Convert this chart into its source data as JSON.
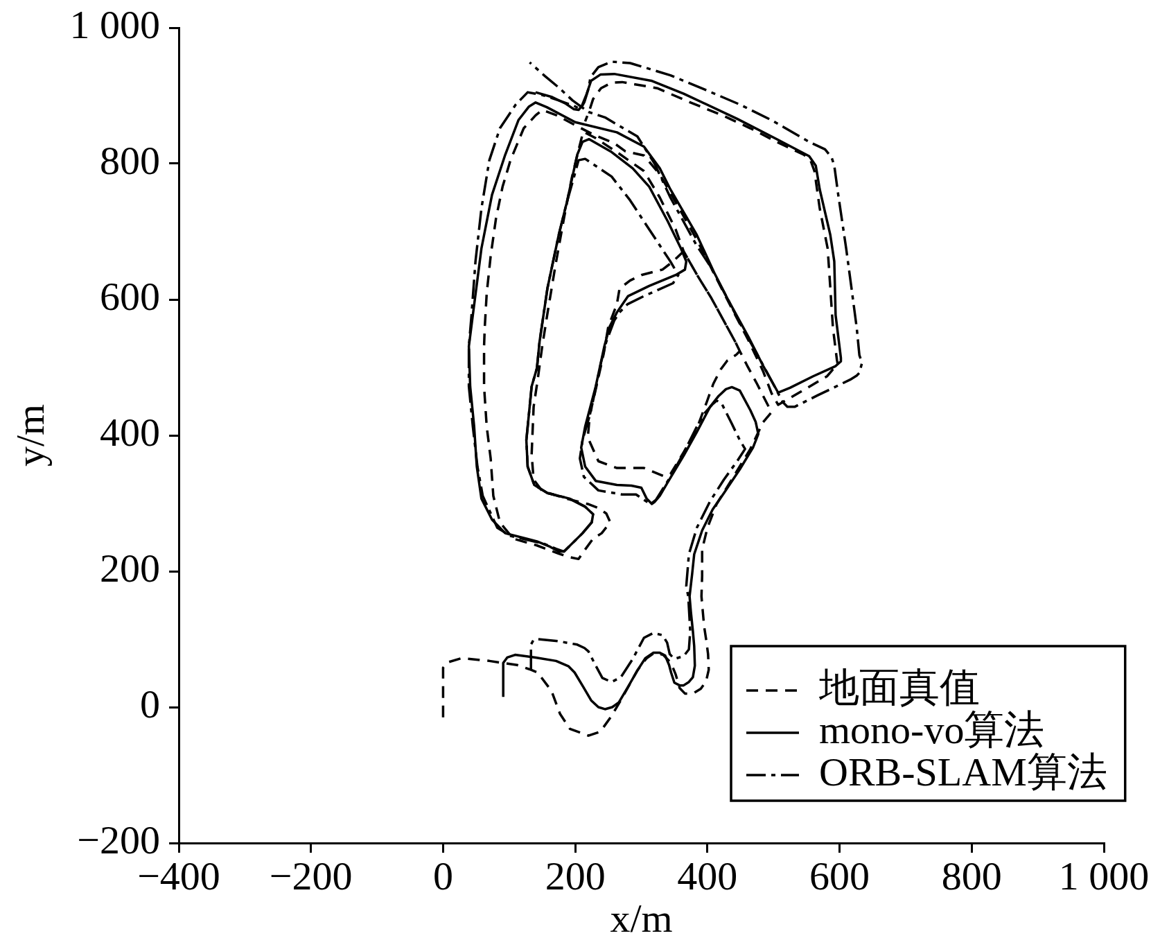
{
  "chart_data": {
    "type": "line",
    "xlabel": "x/m",
    "ylabel": "y/m",
    "xlim": [
      -400,
      1000
    ],
    "ylim": [
      -200,
      1000
    ],
    "xticks": [
      {
        "value": -400,
        "label": "−400"
      },
      {
        "value": -200,
        "label": "−200"
      },
      0,
      200,
      400,
      600,
      800,
      {
        "value": 1000,
        "label": "1 000"
      }
    ],
    "yticks": [
      {
        "value": -200,
        "label": "−200"
      },
      0,
      200,
      400,
      600,
      800,
      {
        "value": 1000,
        "label": "1 000"
      }
    ],
    "legend": "bottom right",
    "marker": "none",
    "series": [
      {
        "name": "地面真值",
        "color": "#000000",
        "line_style": "dashed",
        "x": [
          0,
          0,
          7,
          28,
          70,
          112,
          133,
          143,
          164,
          177,
          192,
          220,
          238,
          255,
          270,
          294,
          308,
          320,
          333,
          345,
          352,
          358,
          366,
          378,
          390,
          398,
          402,
          401,
          398,
          395,
          391,
          392,
          392,
          400,
          414,
          440,
          465,
          484,
          497,
          475,
          460,
          449,
          444,
          430,
          420,
          409,
          399,
          384,
          364,
          344,
          334,
          304,
          263,
          235,
          219,
          222,
          232,
          243,
          250,
          263,
          267,
          283,
          300,
          332,
          348,
          364,
          385,
          406,
          424,
          442,
          449,
          442,
          424,
          406,
          385,
          364,
          352,
          328,
          304,
          263,
          230,
          212,
          205,
          195,
          183,
          170,
          158,
          150,
          143,
          137,
          134,
          137,
          150,
          190,
          219,
          235,
          247,
          253,
          240,
          227,
          215,
          205,
          190,
          175,
          142,
          106,
          86,
          76,
          72,
          66,
          62,
          62,
          63,
          66,
          72,
          80,
          90,
          102,
          122,
          140,
          150,
          172,
          201,
          229,
          259,
          276,
          304,
          328,
          344,
          384,
          430,
          462,
          484,
          497,
          507,
          539,
          581,
          590,
          598,
          596,
          590,
          586,
          582,
          570,
          562,
          556,
          546,
          505,
          465,
          425,
          372,
          324,
          271,
          255,
          239,
          227,
          222,
          215
        ],
        "values": [
          -15,
          58,
          66,
          72,
          68,
          62,
          55,
          51,
          24,
          -10,
          -32,
          -42,
          -36,
          -13,
          12,
          54,
          72,
          80,
          77,
          65,
          48,
          28,
          20,
          20,
          27,
          38,
          55,
          78,
          100,
          119,
          163,
          193,
          232,
          264,
          299,
          340,
          380,
          419,
          434,
          476,
          503,
          524,
          519,
          510,
          497,
          476,
          449,
          410,
          375,
          343,
          340,
          352,
          352,
          362,
          397,
          430,
          472,
          520,
          560,
          593,
          616,
          628,
          636,
          644,
          656,
          671,
          635,
          602,
          570,
          538,
          524,
          538,
          570,
          602,
          635,
          671,
          703,
          750,
          789,
          817,
          838,
          847,
          820,
          780,
          720,
          650,
          580,
          531,
          481,
          442,
          372,
          335,
          318,
          306,
          299,
          293,
          285,
          272,
          256,
          248,
          232,
          218,
          221,
          226,
          238,
          248,
          272,
          311,
          366,
          413,
          472,
          531,
          558,
          609,
          664,
          719,
          766,
          805,
          852,
          871,
          879,
          871,
          856,
          842,
          830,
          818,
          812,
          784,
          757,
          688,
          600,
          540,
          495,
          462,
          445,
          463,
          487,
          497,
          501,
          511,
          558,
          617,
          675,
          734,
          789,
          805,
          813,
          832,
          852,
          870,
          891,
          911,
          920,
          919,
          911,
          895,
          880,
          862
        ]
      },
      {
        "name": "mono-vo算法",
        "color": "#000000",
        "line_style": "solid",
        "x": [
          91,
          91,
          97,
          109,
          140,
          171,
          190,
          199,
          212,
          224,
          235,
          245,
          256,
          266,
          280,
          294,
          306,
          318,
          328,
          336,
          342,
          345,
          350,
          358,
          364,
          372,
          378,
          381,
          380,
          378,
          375,
          373,
          377,
          380,
          392,
          408,
          425,
          449,
          469,
          477,
          473,
          465,
          449,
          437,
          428,
          417,
          404,
          384,
          364,
          340,
          328,
          320,
          316,
          308,
          300,
          285,
          263,
          231,
          215,
          209,
          215,
          231,
          244,
          252,
          263,
          280,
          312,
          352,
          366,
          368,
          360,
          340,
          312,
          287,
          255,
          221,
          211,
          203,
          187,
          175,
          158,
          146,
          142,
          134,
          126,
          128,
          138,
          158,
          191,
          215,
          227,
          225,
          211,
          183,
          175,
          162,
          142,
          94,
          74,
          58,
          51,
          47,
          41,
          39,
          45,
          58,
          74,
          94,
          114,
          130,
          140,
          157,
          200,
          263,
          304,
          328,
          344,
          384,
          410,
          430,
          462,
          484,
          507,
          525,
          560,
          594,
          602,
          602,
          594,
          592,
          586,
          570,
          564,
          554,
          505,
          445,
          364,
          315,
          259,
          238,
          224,
          217,
          210,
          205,
          198,
          186,
          165,
          140
        ],
        "values": [
          15,
          65,
          73,
          77,
          73,
          68,
          60,
          51,
          30,
          10,
          0,
          -3,
          0,
          7,
          30,
          54,
          72,
          80,
          80,
          76,
          62,
          51,
          36,
          32,
          32,
          37,
          44,
          61,
          90,
          112,
          140,
          163,
          197,
          225,
          260,
          291,
          315,
          350,
          382,
          402,
          420,
          437,
          466,
          471,
          468,
          458,
          442,
          405,
          370,
          331,
          311,
          302,
          299,
          307,
          323,
          326,
          327,
          333,
          354,
          382,
          413,
          472,
          531,
          560,
          581,
          605,
          620,
          636,
          644,
          656,
          675,
          715,
          766,
          793,
          817,
          836,
          832,
          813,
          742,
          695,
          617,
          538,
          499,
          472,
          393,
          354,
          327,
          315,
          307,
          295,
          284,
          272,
          256,
          229,
          229,
          236,
          244,
          256,
          276,
          307,
          354,
          413,
          472,
          531,
          577,
          675,
          754,
          813,
          864,
          884,
          890,
          883,
          861,
          846,
          825,
          793,
          762,
          695,
          640,
          602,
          545,
          503,
          463,
          470,
          487,
          502,
          509,
          514,
          577,
          656,
          695,
          762,
          797,
          811,
          836,
          866,
          903,
          922,
          932,
          931,
          922,
          902,
          885,
          879,
          880,
          888,
          898,
          905
        ]
      },
      {
        "name": "ORB-SLAM算法",
        "color": "#000000",
        "line_style": "dashdot",
        "x": [
          133,
          133,
          137,
          144,
          175,
          203,
          214,
          220,
          231,
          241,
          255,
          269,
          287,
          304,
          318,
          332,
          339,
          343,
          350,
          364,
          372,
          374,
          371,
          368,
          372,
          384,
          404,
          425,
          445,
          457,
          449,
          437,
          421,
          414,
          408,
          396,
          384,
          364,
          344,
          322,
          314,
          304,
          292,
          271,
          235,
          213,
          207,
          211,
          223,
          239,
          247,
          259,
          267,
          279,
          304,
          348,
          356,
          344,
          312,
          283,
          255,
          215,
          205,
          198,
          187,
          175,
          158,
          146,
          142,
          134,
          126,
          128,
          138,
          158,
          191,
          215,
          227,
          225,
          211,
          183,
          171,
          154,
          102,
          82,
          60,
          52,
          45,
          39,
          39,
          43,
          49,
          58,
          70,
          86,
          110,
          128,
          150,
          175,
          198,
          208,
          214,
          220,
          223,
          235,
          255,
          283,
          344,
          396,
          449,
          497,
          554,
          578,
          588,
          592,
          598,
          610,
          618,
          626,
          630,
          634,
          630,
          626,
          616,
          567,
          532,
          521,
          514,
          500,
          475,
          452,
          430,
          405,
          384,
          344,
          320,
          294,
          245,
          220,
          196,
          175,
          154,
          131
        ],
        "values": [
          56,
          92,
          99,
          100,
          97,
          92,
          87,
          82,
          61,
          43,
          37,
          44,
          71,
          102,
          109,
          106,
          95,
          78,
          71,
          75,
          85,
          112,
          163,
          178,
          225,
          264,
          303,
          335,
          362,
          380,
          393,
          417,
          448,
          451,
          446,
          433,
          413,
          374,
          339,
          305,
          299,
          305,
          313,
          313,
          319,
          339,
          366,
          393,
          433,
          507,
          538,
          569,
          581,
          593,
          605,
          624,
          636,
          656,
          703,
          746,
          781,
          807,
          805,
          780,
          742,
          695,
          617,
          538,
          499,
          472,
          393,
          354,
          327,
          315,
          307,
          295,
          284,
          272,
          256,
          229,
          233,
          240,
          252,
          264,
          311,
          354,
          413,
          472,
          531,
          577,
          656,
          734,
          805,
          852,
          887,
          905,
          901,
          893,
          885,
          880,
          891,
          910,
          927,
          942,
          950,
          948,
          930,
          909,
          887,
          864,
          832,
          821,
          809,
          797,
          754,
          675,
          617,
          558,
          518,
          507,
          492,
          488,
          482,
          459,
          442,
          442,
          449,
          475,
          520,
          560,
          602,
          648,
          679,
          750,
          800,
          840,
          868,
          876,
          893,
          912,
          929,
          949
        ]
      }
    ]
  }
}
